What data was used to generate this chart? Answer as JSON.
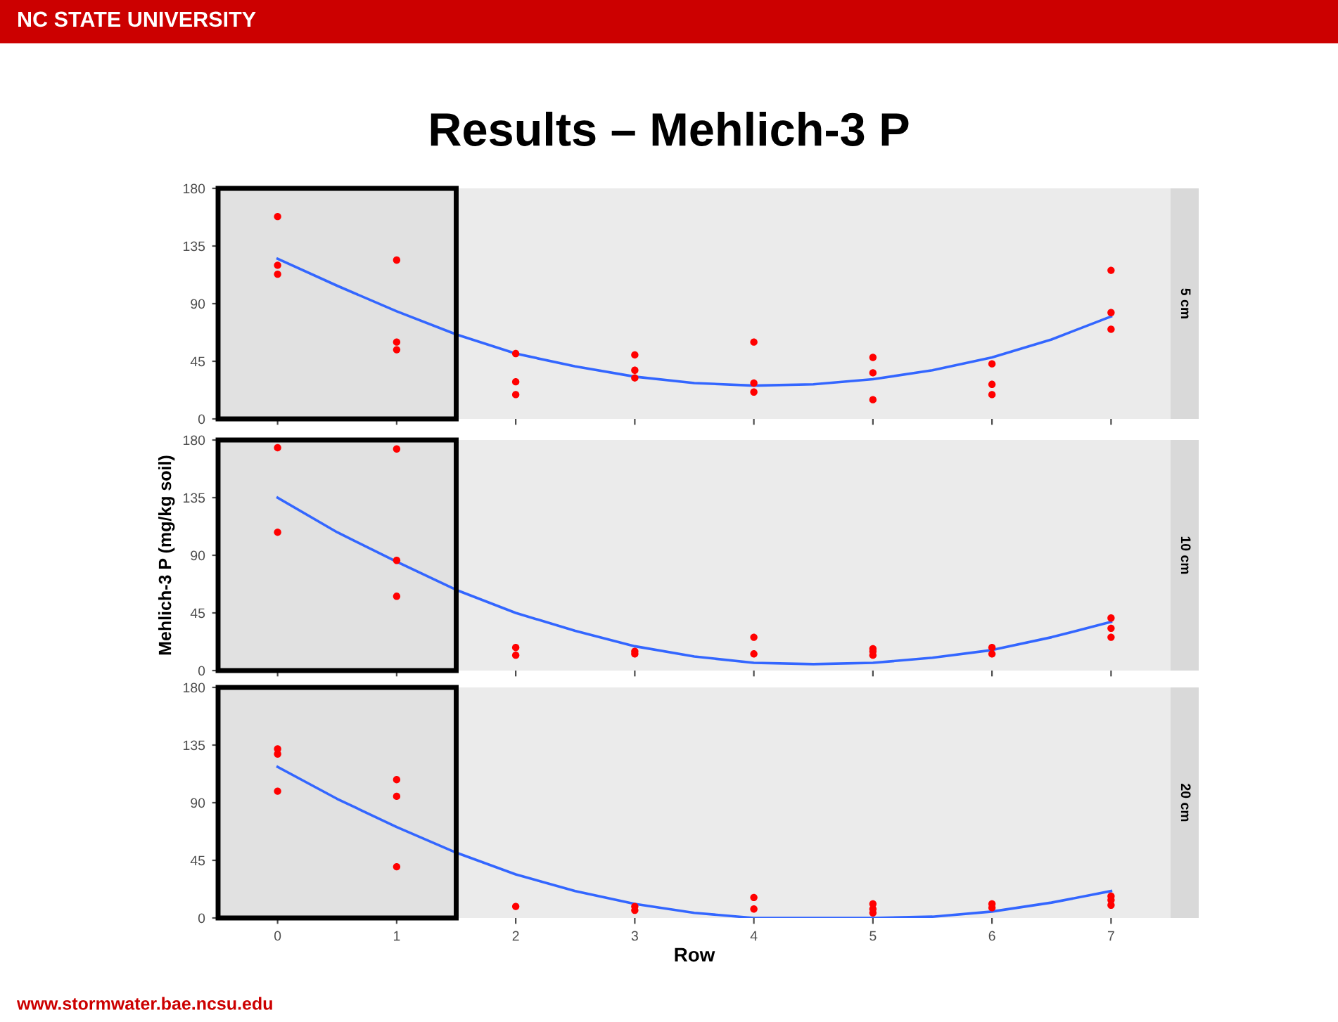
{
  "chart_data": [
    {
      "type": "scatter",
      "title": "Results – Mehlich-3 P",
      "annotations": [
        "NC STATE UNIVERSITY",
        "www.stormwater.bae.ncsu.edu",
        "5 cm"
      ],
      "xlim": [
        -0.5,
        7.5
      ],
      "xticks": [
        0,
        1,
        2,
        3,
        4,
        5,
        6,
        7
      ],
      "ylim": [
        0,
        180
      ],
      "yticks": [
        0,
        45,
        90,
        135,
        180
      ],
      "tick_labels": "y",
      "grid": false,
      "legend": false,
      "bands": [
        {
          "axis": "x",
          "from": -0.5,
          "to": 1.5,
          "color": "#000000"
        }
      ],
      "series": [
        {
          "marker": "circle",
          "color": "#ff0000",
          "x": [
            0,
            0,
            0,
            1,
            1,
            1,
            2,
            2,
            2,
            3,
            3,
            3,
            4,
            4,
            4,
            5,
            5,
            5,
            6,
            6,
            6,
            7,
            7,
            7
          ],
          "values": [
            158,
            120,
            113,
            124,
            60,
            54,
            51,
            29,
            19,
            50,
            38,
            32,
            60,
            28,
            21,
            48,
            36,
            15,
            43,
            27,
            19,
            116,
            83,
            70
          ]
        },
        {
          "type": "line",
          "marker": "none",
          "line_style": "solid",
          "color": "#3366ff",
          "x": [
            0,
            0.5,
            1,
            1.5,
            2,
            2.5,
            3,
            3.5,
            4,
            4.5,
            5,
            5.5,
            6,
            6.5,
            7
          ],
          "values": [
            125,
            104,
            84,
            66,
            51,
            41,
            33,
            28,
            26,
            27,
            31,
            38,
            48,
            62,
            80
          ]
        }
      ]
    },
    {
      "type": "scatter",
      "ylabel": "Mehlich-3 P (mg/kg soil)",
      "annotations": [
        "10 cm"
      ],
      "xlim": [
        -0.5,
        7.5
      ],
      "xticks": [
        0,
        1,
        2,
        3,
        4,
        5,
        6,
        7
      ],
      "ylim": [
        0,
        180
      ],
      "yticks": [
        0,
        45,
        90,
        135,
        180
      ],
      "tick_labels": "y",
      "grid": false,
      "legend": false,
      "bands": [
        {
          "axis": "x",
          "from": -0.5,
          "to": 1.5,
          "color": "#000000"
        }
      ],
      "series": [
        {
          "marker": "circle",
          "color": "#ff0000",
          "x": [
            0,
            0,
            1,
            1,
            1,
            2,
            2,
            3,
            3,
            4,
            4,
            5,
            5,
            5,
            6,
            6,
            7,
            7,
            7
          ],
          "values": [
            174,
            108,
            173,
            86,
            58,
            18,
            12,
            15,
            13,
            26,
            13,
            17,
            15,
            12,
            18,
            13,
            41,
            33,
            26
          ]
        },
        {
          "type": "line",
          "marker": "none",
          "line_style": "solid",
          "color": "#3366ff",
          "x": [
            0,
            0.5,
            1,
            1.5,
            2,
            2.5,
            3,
            3.5,
            4,
            4.5,
            5,
            5.5,
            6,
            6.5,
            7
          ],
          "values": [
            135,
            108,
            85,
            63,
            45,
            31,
            19,
            11,
            6,
            5,
            6,
            10,
            16,
            26,
            38
          ]
        }
      ]
    },
    {
      "type": "scatter",
      "xlabel": "Row",
      "annotations": [
        "20 cm"
      ],
      "xlim": [
        -0.5,
        7.5
      ],
      "xticks": [
        0,
        1,
        2,
        3,
        4,
        5,
        6,
        7
      ],
      "ylim": [
        0,
        180
      ],
      "yticks": [
        0,
        45,
        90,
        135,
        180
      ],
      "grid": false,
      "legend": false,
      "bands": [
        {
          "axis": "x",
          "from": -0.5,
          "to": 1.5,
          "color": "#000000"
        }
      ],
      "series": [
        {
          "marker": "circle",
          "color": "#ff0000",
          "x": [
            0,
            0,
            0,
            1,
            1,
            1,
            2,
            3,
            3,
            4,
            4,
            5,
            5,
            5,
            6,
            6,
            7,
            7,
            7
          ],
          "values": [
            132,
            128,
            99,
            108,
            95,
            40,
            9,
            9,
            6,
            16,
            7,
            11,
            7,
            4,
            11,
            8,
            17,
            14,
            10
          ]
        },
        {
          "type": "line",
          "marker": "none",
          "line_style": "solid",
          "color": "#3366ff",
          "x": [
            0,
            0.5,
            1,
            1.5,
            2,
            2.5,
            3,
            3.5,
            4,
            4.5,
            5,
            5.5,
            6,
            6.5,
            7
          ],
          "values": [
            118,
            93,
            71,
            51,
            34,
            21,
            11,
            4,
            0,
            0,
            0,
            1,
            5,
            12,
            21
          ]
        }
      ]
    }
  ]
}
